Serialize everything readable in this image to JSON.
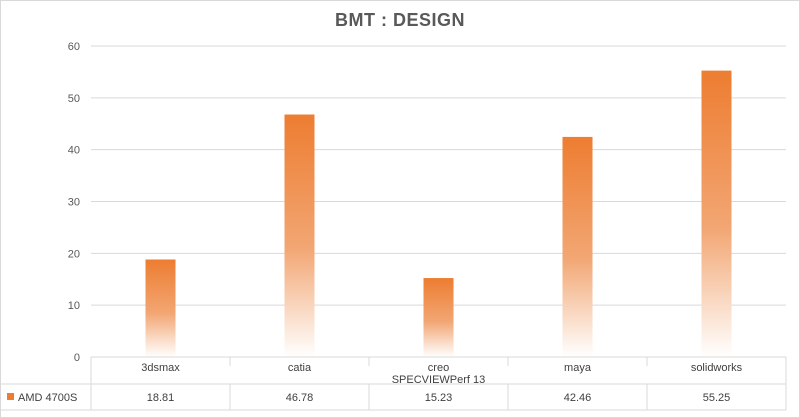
{
  "chart_data": {
    "type": "bar",
    "title": "BMT : DESIGN",
    "categories": [
      "3dsmax",
      "catia",
      "creo",
      "maya",
      "solidworks"
    ],
    "category_group_label": "SPECVIEWPerf 13",
    "series": [
      {
        "name": "AMD 4700S",
        "values": [
          18.81,
          46.78,
          15.23,
          42.46,
          55.25
        ],
        "color": "#ed7d31"
      }
    ],
    "value_labels": [
      "18.81",
      "46.78",
      "15.23",
      "42.46",
      "55.25"
    ],
    "ylim": [
      0,
      60
    ],
    "yticks": [
      "0",
      "10",
      "20",
      "30",
      "40",
      "50",
      "60"
    ],
    "grid": true,
    "legend_placement": "data-table"
  }
}
